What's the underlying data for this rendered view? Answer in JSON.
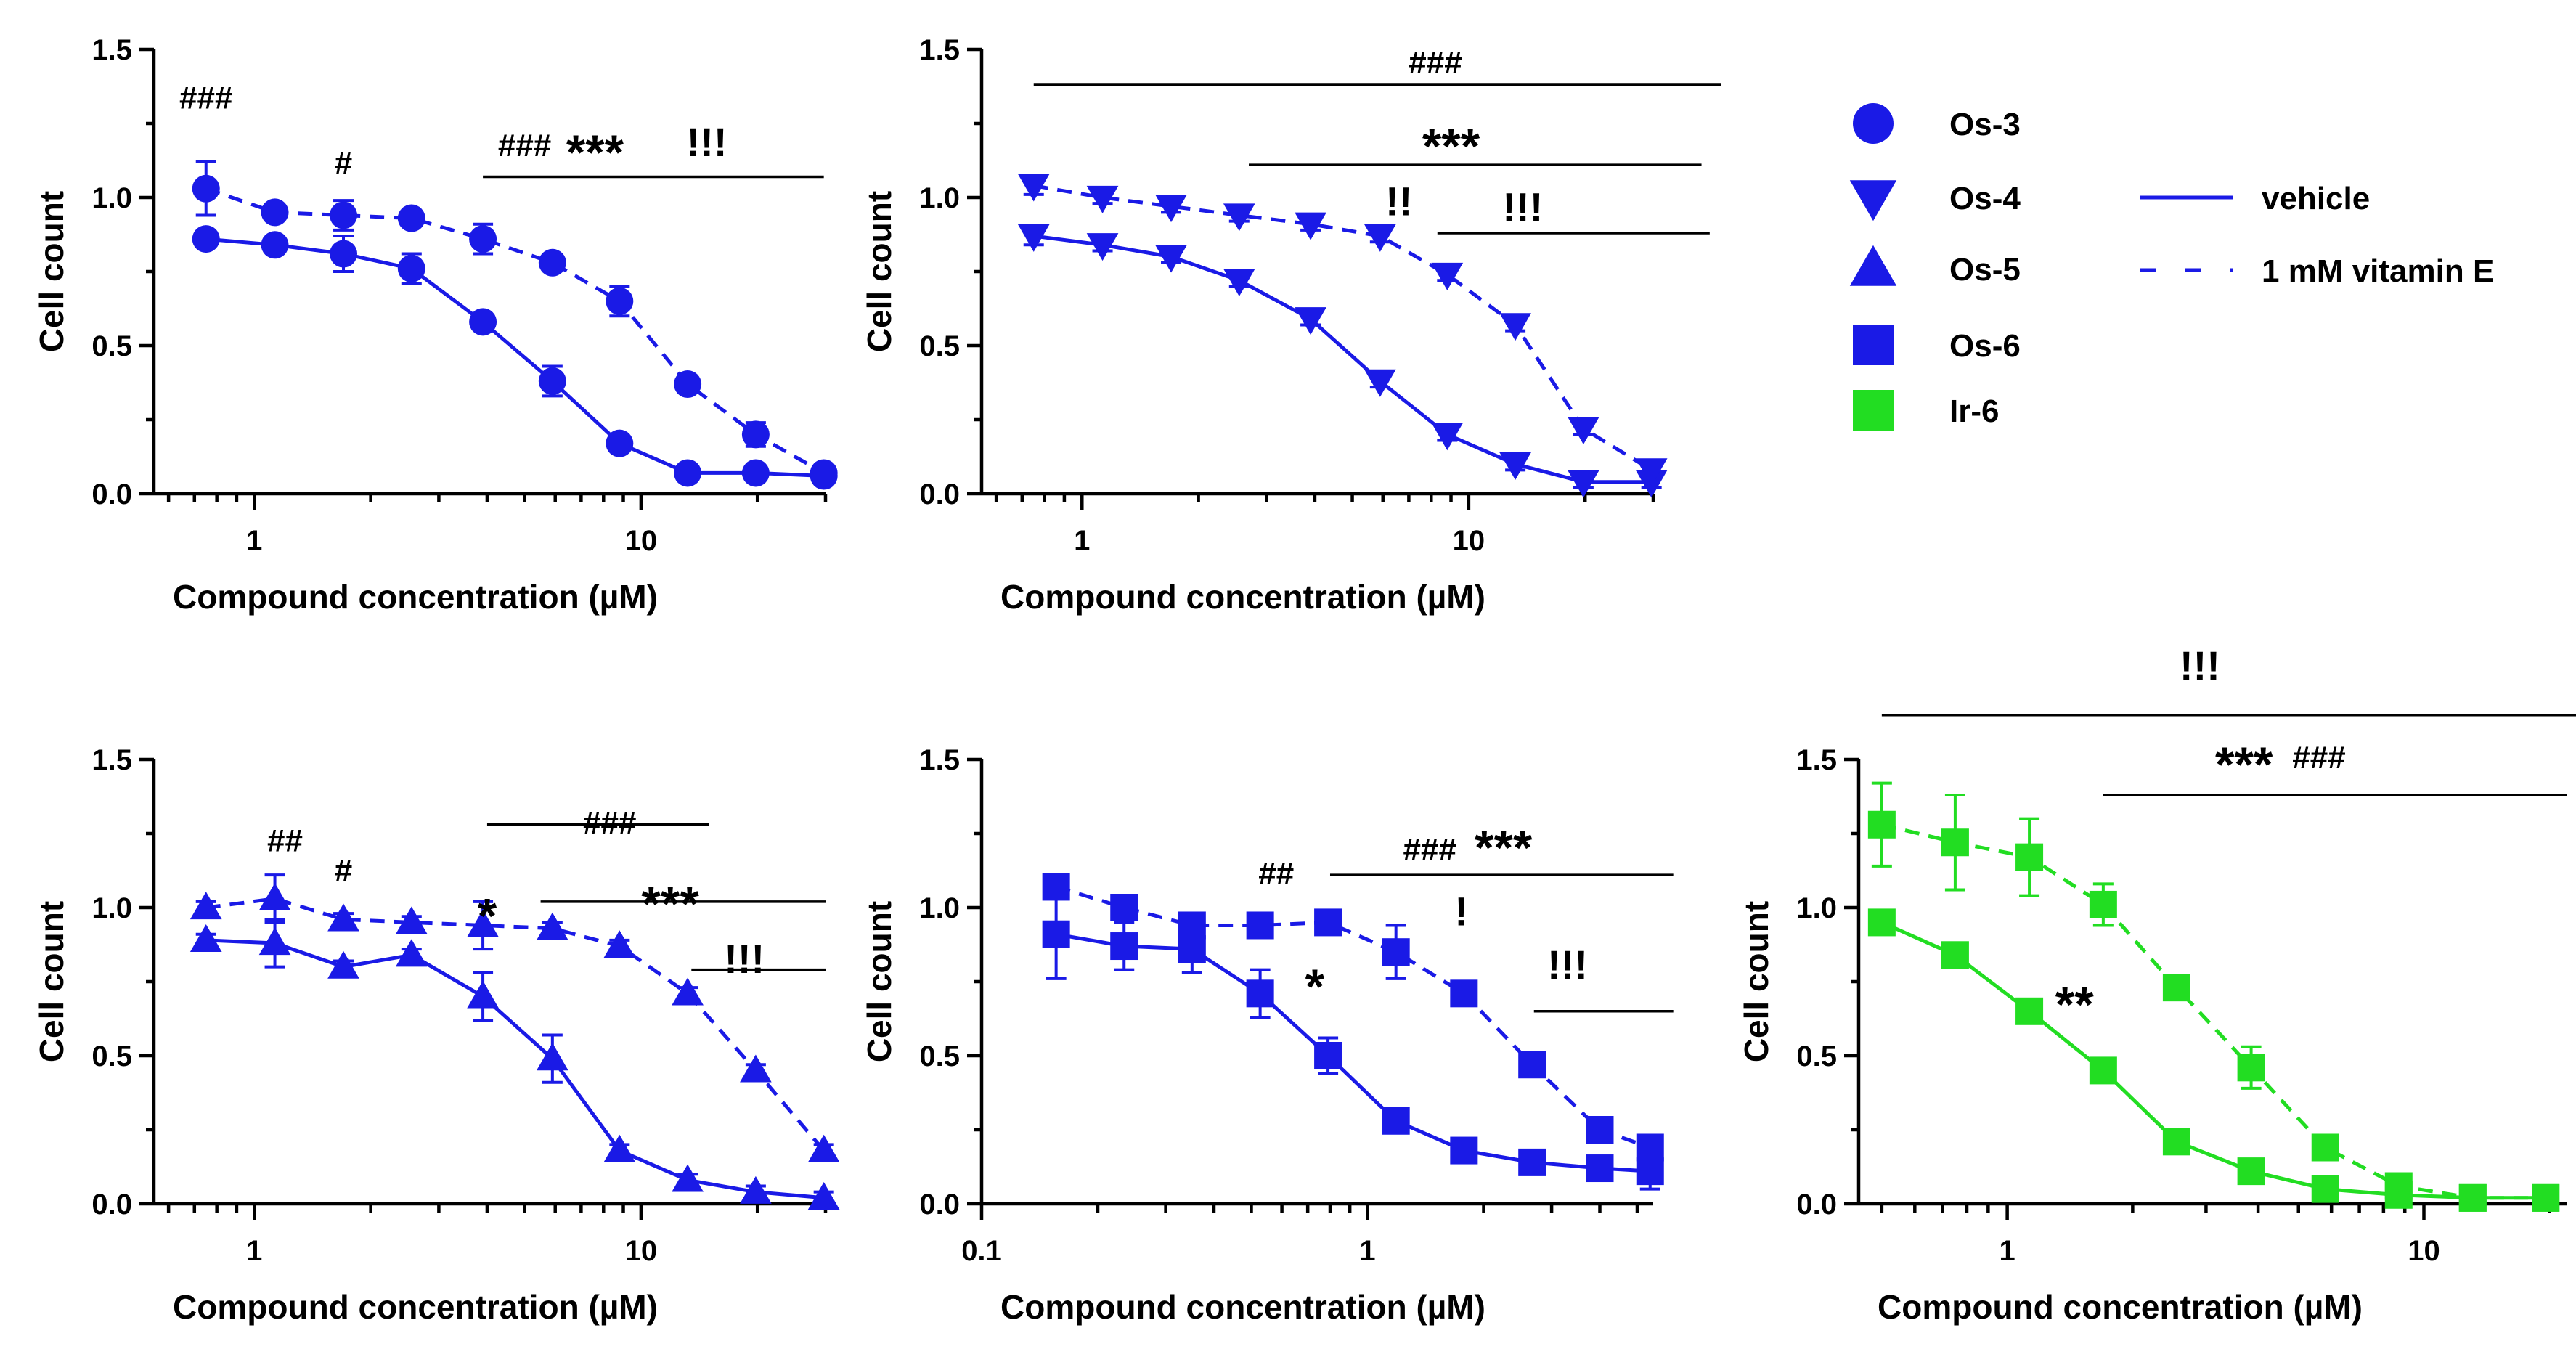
{
  "chart_data": [
    {
      "type": "line",
      "compound": "Os-3",
      "color": "#1a1ae6",
      "marker": "circle",
      "xscale": "log",
      "xlim": [
        0.55,
        30
      ],
      "ylim": [
        0,
        1.5
      ],
      "xticks": [
        "1",
        "10"
      ],
      "yticks": [
        "0.0",
        "0.5",
        "1.0",
        "1.5"
      ],
      "xlabel": "Compound concentration (µM)",
      "ylabel": "Cell count",
      "series": [
        {
          "name": "vehicle",
          "style": "solid",
          "x": [
            0.75,
            1.13,
            1.7,
            2.55,
            3.9,
            5.9,
            8.8,
            13.2,
            19.8,
            29.7
          ],
          "y": [
            0.86,
            0.84,
            0.81,
            0.76,
            0.58,
            0.38,
            0.17,
            0.07,
            0.07,
            0.06
          ],
          "err": [
            0.02,
            0.02,
            0.06,
            0.05,
            0.02,
            0.05,
            0.02,
            0.02,
            0.02,
            0.02
          ]
        },
        {
          "name": "1 mM vitamin E",
          "style": "dashed",
          "x": [
            0.75,
            1.13,
            1.7,
            2.55,
            3.9,
            5.9,
            8.8,
            13.2,
            19.8,
            29.7
          ],
          "y": [
            1.03,
            0.95,
            0.94,
            0.93,
            0.86,
            0.78,
            0.65,
            0.37,
            0.2,
            0.07
          ],
          "err": [
            0.09,
            0.02,
            0.05,
            0.02,
            0.05,
            0.02,
            0.05,
            0.02,
            0.04,
            0.02
          ]
        }
      ],
      "annotations": [
        {
          "text": "###",
          "x": 0.75,
          "y": 1.3
        },
        {
          "text": "#",
          "x": 1.7,
          "y": 1.08
        },
        {
          "text": "###",
          "x": 5.0,
          "y": 1.14
        },
        {
          "text": "***",
          "x": 7.6,
          "y": 1.14
        },
        {
          "text": "!!!",
          "x": 14.8,
          "y": 1.14
        }
      ],
      "lines": [
        {
          "x1": 3.9,
          "x2": 29.7,
          "y": 1.07
        }
      ]
    },
    {
      "type": "line",
      "compound": "Os-4",
      "color": "#1a1ae6",
      "marker": "triangle-down",
      "xscale": "log",
      "xlim": [
        0.55,
        30
      ],
      "ylim": [
        0,
        1.5
      ],
      "xticks": [
        "1",
        "10"
      ],
      "yticks": [
        "0.0",
        "0.5",
        "1.0",
        "1.5"
      ],
      "xlabel": "Compound concentration (µM)",
      "ylabel": "Cell count",
      "series": [
        {
          "name": "vehicle",
          "style": "solid",
          "x": [
            0.75,
            1.13,
            1.7,
            2.55,
            3.9,
            5.9,
            8.8,
            13.2,
            19.8,
            29.7
          ],
          "y": [
            0.87,
            0.84,
            0.8,
            0.72,
            0.59,
            0.38,
            0.2,
            0.1,
            0.04,
            0.04
          ],
          "err": [
            0.03,
            0.02,
            0.02,
            0.02,
            0.02,
            0.02,
            0.02,
            0.02,
            0.02,
            0.02
          ]
        },
        {
          "name": "1 mM vitamin E",
          "style": "dashed",
          "x": [
            0.75,
            1.13,
            1.7,
            2.55,
            3.9,
            5.9,
            8.8,
            13.2,
            19.8,
            29.7
          ],
          "y": [
            1.04,
            1.0,
            0.97,
            0.94,
            0.91,
            0.87,
            0.74,
            0.57,
            0.22,
            0.08
          ],
          "err": [
            0.03,
            0.02,
            0.02,
            0.02,
            0.02,
            0.02,
            0.02,
            0.02,
            0.02,
            0.02
          ]
        }
      ],
      "annotations": [
        {
          "text": "###",
          "x": 8.2,
          "y": 1.42
        },
        {
          "text": "***",
          "x": 9.0,
          "y": 1.16
        },
        {
          "text": "!!",
          "x": 6.6,
          "y": 0.94
        },
        {
          "text": "!!!",
          "x": 13.8,
          "y": 0.92
        }
      ],
      "lines": [
        {
          "x1": 0.75,
          "x2": 45,
          "y": 1.38
        },
        {
          "x1": 2.7,
          "x2": 40,
          "y": 1.11
        },
        {
          "x1": 8.3,
          "x2": 42,
          "y": 0.88
        }
      ]
    },
    {
      "type": "line",
      "compound": "Os-5",
      "color": "#1a1ae6",
      "marker": "triangle-up",
      "xscale": "log",
      "xlim": [
        0.55,
        30
      ],
      "ylim": [
        0,
        1.5
      ],
      "xticks": [
        "1",
        "10"
      ],
      "yticks": [
        "0.0",
        "0.5",
        "1.0",
        "1.5"
      ],
      "xlabel": "Compound concentration (µM)",
      "ylabel": "Cell count",
      "series": [
        {
          "name": "vehicle",
          "style": "solid",
          "x": [
            0.75,
            1.13,
            1.7,
            2.55,
            3.9,
            5.9,
            8.8,
            13.2,
            19.8,
            29.7
          ],
          "y": [
            0.89,
            0.88,
            0.8,
            0.84,
            0.7,
            0.49,
            0.18,
            0.08,
            0.04,
            0.02
          ],
          "err": [
            0.02,
            0.08,
            0.02,
            0.02,
            0.08,
            0.08,
            0.02,
            0.02,
            0.02,
            0.02
          ]
        },
        {
          "name": "1 mM vitamin E",
          "style": "dashed",
          "x": [
            0.75,
            1.13,
            1.7,
            2.55,
            3.9,
            5.9,
            8.8,
            13.2,
            19.8,
            29.7
          ],
          "y": [
            1.0,
            1.03,
            0.96,
            0.95,
            0.94,
            0.93,
            0.87,
            0.71,
            0.45,
            0.18
          ],
          "err": [
            0.02,
            0.08,
            0.02,
            0.02,
            0.08,
            0.02,
            0.02,
            0.02,
            0.02,
            0.02
          ]
        }
      ],
      "annotations": [
        {
          "text": "##",
          "x": 1.2,
          "y": 1.19
        },
        {
          "text": "#",
          "x": 1.7,
          "y": 1.09
        },
        {
          "text": "*",
          "x": 4.0,
          "y": 0.96
        },
        {
          "text": "###",
          "x": 8.3,
          "y": 1.25
        },
        {
          "text": "***",
          "x": 11.9,
          "y": 1.0
        },
        {
          "text": "!!!",
          "x": 18.5,
          "y": 0.78
        }
      ],
      "lines": [
        {
          "x1": 4.0,
          "x2": 15.0,
          "y": 1.28
        },
        {
          "x1": 5.5,
          "x2": 30,
          "y": 1.02
        },
        {
          "x1": 13.5,
          "x2": 30,
          "y": 0.79
        }
      ]
    },
    {
      "type": "line",
      "compound": "Os-6",
      "color": "#1a1ae6",
      "marker": "square",
      "xscale": "log",
      "xlim": [
        0.1,
        5.5
      ],
      "ylim": [
        0,
        1.5
      ],
      "xticks": [
        "0.1",
        "1"
      ],
      "yticks": [
        "0.0",
        "0.5",
        "1.0",
        "1.5"
      ],
      "xlabel": "Compound concentration (µM)",
      "ylabel": "Cell count",
      "series": [
        {
          "name": "vehicle",
          "style": "solid",
          "x": [
            0.156,
            0.234,
            0.351,
            0.527,
            0.79,
            1.185,
            1.778,
            2.67,
            4.0,
            5.4
          ],
          "y": [
            0.91,
            0.87,
            0.86,
            0.71,
            0.5,
            0.28,
            0.18,
            0.14,
            0.12,
            0.11
          ],
          "err": [
            0.15,
            0.08,
            0.08,
            0.08,
            0.06,
            0.04,
            0.03,
            0.02,
            0.02,
            0.06
          ]
        },
        {
          "name": "1 mM vitamin E",
          "style": "dashed",
          "x": [
            0.156,
            0.234,
            0.351,
            0.527,
            0.79,
            1.185,
            1.778,
            2.67,
            4.0,
            5.4
          ],
          "y": [
            1.07,
            1.0,
            0.94,
            0.94,
            0.95,
            0.85,
            0.71,
            0.47,
            0.25,
            0.19
          ],
          "err": [
            0.03,
            0.03,
            0.03,
            0.03,
            0.03,
            0.09,
            0.03,
            0.03,
            0.03,
            0.04
          ]
        }
      ],
      "annotations": [
        {
          "text": "##",
          "x": 0.58,
          "y": 1.08
        },
        {
          "text": "###",
          "x": 1.45,
          "y": 1.16
        },
        {
          "text": "***",
          "x": 2.25,
          "y": 1.19
        },
        {
          "text": "*",
          "x": 0.73,
          "y": 0.72
        },
        {
          "text": "!",
          "x": 1.75,
          "y": 0.94
        },
        {
          "text": "!!!",
          "x": 3.3,
          "y": 0.76
        }
      ],
      "lines": [
        {
          "x1": 0.8,
          "x2": 6.2,
          "y": 1.11
        },
        {
          "x1": 2.7,
          "x2": 6.2,
          "y": 0.65
        }
      ]
    },
    {
      "type": "line",
      "compound": "Ir-6",
      "color": "#22dd22",
      "marker": "square",
      "xscale": "log",
      "xlim": [
        0.44,
        22
      ],
      "ylim": [
        0,
        1.5
      ],
      "xticks": [
        "1",
        "10"
      ],
      "yticks": [
        "0.0",
        "0.5",
        "1.0",
        "1.5"
      ],
      "xlabel": "Compound concentration (µM)",
      "ylabel": "Cell count",
      "series": [
        {
          "name": "vehicle",
          "style": "solid",
          "x": [
            0.5,
            0.75,
            1.13,
            1.7,
            2.55,
            3.85,
            5.8,
            8.7,
            13.1,
            19.6
          ],
          "y": [
            0.95,
            0.84,
            0.65,
            0.45,
            0.21,
            0.11,
            0.05,
            0.03,
            0.02,
            0.02
          ],
          "err": [
            0.02,
            0.02,
            0.02,
            0.02,
            0.02,
            0.02,
            0.02,
            0.02,
            0.02,
            0.02
          ]
        },
        {
          "name": "1 mM vitamin E",
          "style": "dashed",
          "x": [
            0.5,
            0.75,
            1.13,
            1.7,
            2.55,
            3.85,
            5.8,
            8.7,
            13.1,
            19.6
          ],
          "y": [
            1.28,
            1.22,
            1.17,
            1.01,
            0.73,
            0.46,
            0.19,
            0.06,
            0.02,
            0.02
          ],
          "err": [
            0.14,
            0.16,
            0.13,
            0.07,
            0.03,
            0.07,
            0.03,
            0.03,
            0.02,
            0.02
          ]
        }
      ],
      "annotations": [
        {
          "text": "!!!",
          "x": 2.9,
          "y": 1.77
        },
        {
          "text": "***",
          "x": 3.7,
          "y": 1.47
        },
        {
          "text": "###",
          "x": 5.6,
          "y": 1.47
        },
        {
          "text": "**",
          "x": 1.45,
          "y": 0.66
        }
      ],
      "lines": [
        {
          "x1": 0.5,
          "x2": 26,
          "y": 1.65
        },
        {
          "x1": 1.7,
          "x2": 22,
          "y": 1.38
        }
      ]
    }
  ],
  "legend": {
    "compounds": [
      {
        "label": "Os-3",
        "marker": "circle",
        "color": "#1a1ae6"
      },
      {
        "label": "Os-4",
        "marker": "triangle-down",
        "color": "#1a1ae6"
      },
      {
        "label": "Os-5",
        "marker": "triangle-up",
        "color": "#1a1ae6"
      },
      {
        "label": "Os-6",
        "marker": "square",
        "color": "#1a1ae6"
      },
      {
        "label": "Ir-6",
        "marker": "square",
        "color": "#22dd22"
      }
    ],
    "lines": [
      {
        "label": "vehicle",
        "style": "solid",
        "color": "#1a1ae6"
      },
      {
        "label": "1 mM vitamin E",
        "style": "dashed",
        "color": "#1a1ae6"
      }
    ]
  }
}
